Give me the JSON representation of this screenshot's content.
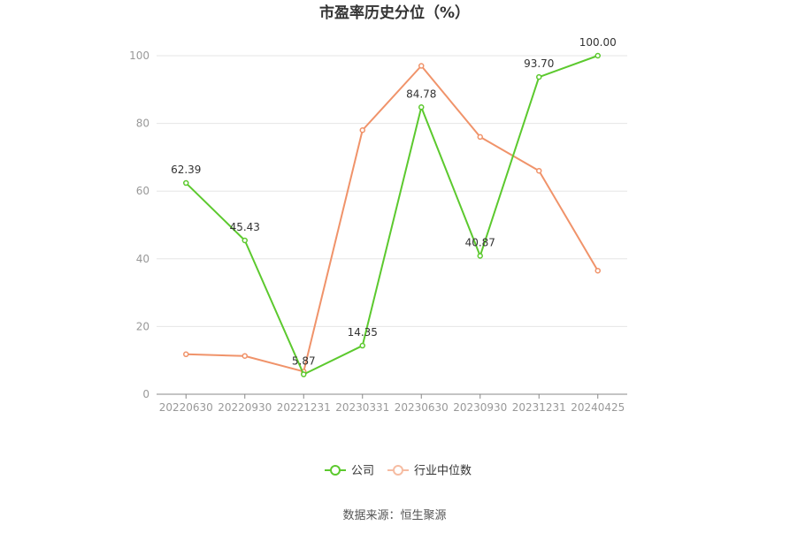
{
  "chart_data": {
    "type": "line",
    "title": "市盈率历史分位（%）",
    "categories": [
      "20220630",
      "20220930",
      "20221231",
      "20230331",
      "20230630",
      "20230930",
      "20231231",
      "20240425"
    ],
    "series": [
      {
        "name": "公司",
        "color": "#5cc92e",
        "values": [
          62.39,
          45.43,
          5.87,
          14.35,
          84.78,
          40.87,
          93.7,
          100.0
        ],
        "labels": [
          "62.39",
          "45.43",
          "5.87",
          "14.35",
          "84.78",
          "40.87",
          "93.70",
          "100.00"
        ]
      },
      {
        "name": "行业中位数",
        "color": "#f0936a",
        "values": [
          11.8,
          11.3,
          6.7,
          78.0,
          97.0,
          76.0,
          66.0,
          36.5
        ]
      }
    ],
    "ylim": [
      0,
      100
    ],
    "yticks": [
      "0",
      "20",
      "40",
      "60",
      "80",
      "100"
    ],
    "grid": true,
    "legend_position": "bottom-center"
  },
  "source": "数据来源：恒生聚源"
}
